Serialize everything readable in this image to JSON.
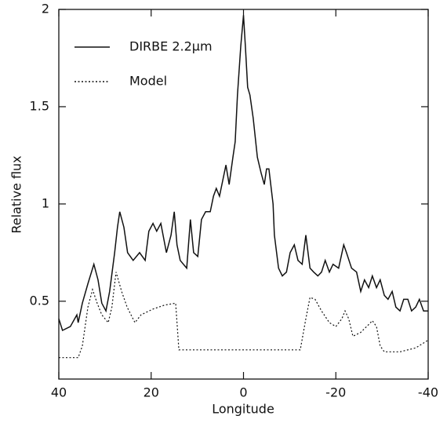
{
  "chart_data": {
    "type": "line",
    "x_label": "Longitude",
    "y_label": "Relative flux",
    "xlim": [
      40,
      -40
    ],
    "ylim": [
      0.1,
      2
    ],
    "xticks": [
      40,
      20,
      0,
      -20,
      -40
    ],
    "yticks": [
      0.5,
      1,
      1.5,
      2
    ],
    "legend": "upper left",
    "series": [
      {
        "name": "DIRBE 2.2μm",
        "color": "#111111",
        "dash": "solid",
        "x": [
          40,
          39.2,
          37.5,
          36.1,
          35.8,
          34.9,
          33.7,
          32.4,
          31.5,
          30.7,
          29.8,
          29.0,
          27.9,
          27.3,
          26.8,
          25.9,
          25.1,
          23.9,
          22.5,
          21.3,
          20.5,
          19.6,
          18.8,
          17.9,
          16.7,
          15.7,
          15.0,
          14.4,
          13.7,
          12.3,
          11.5,
          10.8,
          9.9,
          9.1,
          8.2,
          7.2,
          6.5,
          5.9,
          5.2,
          4.5,
          3.8,
          3.1,
          2.3,
          1.8,
          1.3,
          0.6,
          0,
          -0.4,
          -0.9,
          -1.4,
          -2.1,
          -3.0,
          -3.8,
          -4.5,
          -5.0,
          -5.5,
          -6.4,
          -6.7,
          -7.6,
          -8.4,
          -9.3,
          -10.1,
          -11.0,
          -11.8,
          -12.7,
          -13.5,
          -14.4,
          -15.2,
          -16.1,
          -16.9,
          -17.7,
          -18.6,
          -19.4,
          -20.6,
          -21.7,
          -22.3,
          -23.4,
          -24.5,
          -25.4,
          -26.2,
          -27.1,
          -27.9,
          -28.8,
          -29.6,
          -30.5,
          -31.3,
          -32.2,
          -33.0,
          -33.9,
          -34.7,
          -35.6,
          -36.4,
          -37.3,
          -38.1,
          -39.0,
          -40
        ],
        "values": [
          0.41,
          0.35,
          0.37,
          0.43,
          0.39,
          0.49,
          0.59,
          0.69,
          0.61,
          0.49,
          0.45,
          0.55,
          0.75,
          0.88,
          0.96,
          0.88,
          0.75,
          0.71,
          0.75,
          0.71,
          0.86,
          0.9,
          0.86,
          0.9,
          0.75,
          0.84,
          0.96,
          0.79,
          0.71,
          0.67,
          0.92,
          0.75,
          0.73,
          0.92,
          0.96,
          0.96,
          1.04,
          1.08,
          1.04,
          1.12,
          1.2,
          1.1,
          1.24,
          1.32,
          1.56,
          1.81,
          1.97,
          1.81,
          1.6,
          1.56,
          1.44,
          1.24,
          1.16,
          1.1,
          1.18,
          1.18,
          1.0,
          0.84,
          0.67,
          0.63,
          0.65,
          0.75,
          0.79,
          0.71,
          0.69,
          0.84,
          0.67,
          0.65,
          0.63,
          0.65,
          0.71,
          0.65,
          0.69,
          0.67,
          0.79,
          0.75,
          0.67,
          0.65,
          0.55,
          0.61,
          0.57,
          0.63,
          0.57,
          0.61,
          0.53,
          0.51,
          0.55,
          0.47,
          0.45,
          0.51,
          0.51,
          0.45,
          0.47,
          0.51,
          0.45,
          0.45
        ]
      },
      {
        "name": "Model",
        "color": "#111111",
        "dash": "dotted",
        "x": [
          40,
          35.8,
          34.9,
          33.7,
          32.7,
          31.7,
          30.7,
          29.3,
          28.5,
          27.6,
          26.4,
          25.2,
          23.5,
          22.2,
          19.6,
          17.1,
          14.7,
          14.0,
          1.8,
          -12.3,
          -13.5,
          -14.4,
          -15.5,
          -16.9,
          -18.6,
          -20.0,
          -21.3,
          -22.0,
          -22.8,
          -23.7,
          -25.4,
          -27.1,
          -27.9,
          -28.8,
          -29.6,
          -30.5,
          -33.9,
          -37.3,
          -40
        ],
        "values": [
          0.21,
          0.21,
          0.27,
          0.47,
          0.56,
          0.49,
          0.43,
          0.39,
          0.47,
          0.65,
          0.55,
          0.47,
          0.39,
          0.43,
          0.46,
          0.48,
          0.49,
          0.25,
          0.25,
          0.25,
          0.41,
          0.52,
          0.51,
          0.45,
          0.39,
          0.37,
          0.41,
          0.45,
          0.41,
          0.32,
          0.34,
          0.38,
          0.4,
          0.37,
          0.27,
          0.24,
          0.24,
          0.26,
          0.3
        ]
      }
    ]
  }
}
